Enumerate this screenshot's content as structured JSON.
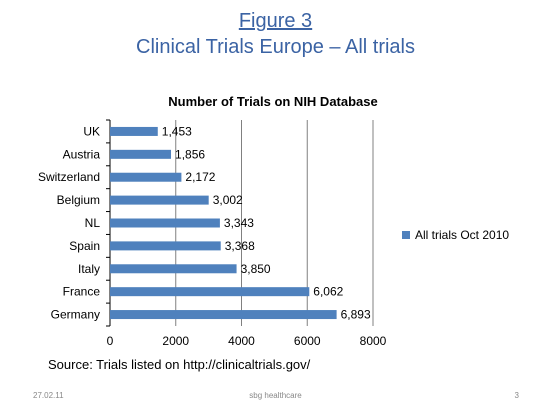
{
  "slide": {
    "title_line1": "Figure 3",
    "title_line2": "Clinical Trials Europe – All trials",
    "source": "Source: Trials listed on http://clinicaltrials.gov/",
    "footer_date": "27.02.11",
    "footer_org": "sbg healthcare",
    "footer_page": "3"
  },
  "chart_data": {
    "type": "bar",
    "orientation": "horizontal",
    "title": "Number of Trials on NIH Database",
    "categories": [
      "UK",
      "Austria",
      "Switzerland",
      "Belgium",
      "NL",
      "Spain",
      "Italy",
      "France",
      "Germany"
    ],
    "series": [
      {
        "name": "All trials Oct 2010",
        "values": [
          1453,
          1856,
          2172,
          3002,
          3343,
          3368,
          3850,
          6062,
          6893
        ],
        "labels": [
          "1,453",
          "1,856",
          "2,172",
          "3,002",
          "3,343",
          "3,368",
          "3,850",
          "6,062",
          "6,893"
        ]
      }
    ],
    "xlim": [
      0,
      8000
    ],
    "xticks": [
      0,
      2000,
      4000,
      6000,
      8000
    ],
    "xlabel": "",
    "ylabel": "",
    "grid": true,
    "legend": "right",
    "bar_color": "#4f81bd",
    "grid_color": "#808080"
  }
}
